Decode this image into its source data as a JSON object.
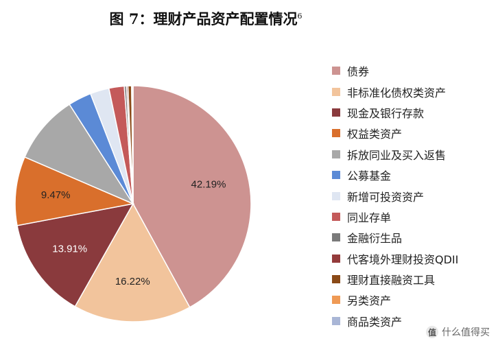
{
  "chart_data": {
    "type": "pie",
    "title": "图 7：理财产品资产配置情况",
    "title_footnote": "6",
    "start_angle_deg": 0,
    "direction": "clockwise",
    "legend_placement": "right",
    "slices": [
      {
        "name": "债券",
        "value": 42.19,
        "label": "42.19%",
        "color": "#cd9391",
        "label_color": "#222222"
      },
      {
        "name": "非标准化债权类资产",
        "value": 16.22,
        "label": "16.22%",
        "color": "#f2c49c",
        "label_color": "#222222"
      },
      {
        "name": "现金及银行存款",
        "value": 13.91,
        "label": "13.91%",
        "color": "#8a3a3d",
        "label_color": "#ffffff"
      },
      {
        "name": "权益类资产",
        "value": 9.47,
        "label": "9.47%",
        "color": "#d96f2c",
        "label_color": "#222222"
      },
      {
        "name": "拆放同业及买入返售",
        "value": 9.5,
        "label": "",
        "color": "#a8a8a8",
        "label_color": "#222222"
      },
      {
        "name": "公募基金",
        "value": 3.2,
        "label": "",
        "color": "#5b8ad6",
        "label_color": "#222222"
      },
      {
        "name": "新增可投资资产",
        "value": 2.6,
        "label": "",
        "color": "#dfe6f2",
        "label_color": "#222222"
      },
      {
        "name": "同业存单",
        "value": 2.1,
        "label": "",
        "color": "#c45a5a",
        "label_color": "#222222"
      },
      {
        "name": "金融衍生品",
        "value": 0.3,
        "label": "",
        "color": "#7a7a7a",
        "label_color": "#222222"
      },
      {
        "name": "代客境外理财投资QDII",
        "value": 0.2,
        "label": "",
        "color": "#943b3b",
        "label_color": "#222222"
      },
      {
        "name": "理财直接融资工具",
        "value": 0.5,
        "label": "",
        "color": "#8a4a17",
        "label_color": "#222222"
      },
      {
        "name": "另类资产",
        "value": 0.1,
        "label": "",
        "color": "#ef9a55",
        "label_color": "#222222"
      },
      {
        "name": "商品类资产",
        "value": 0.1,
        "label": "",
        "color": "#a9b6d6",
        "label_color": "#222222"
      }
    ]
  },
  "watermark": {
    "logo_text": "值",
    "text": "什么值得买"
  }
}
